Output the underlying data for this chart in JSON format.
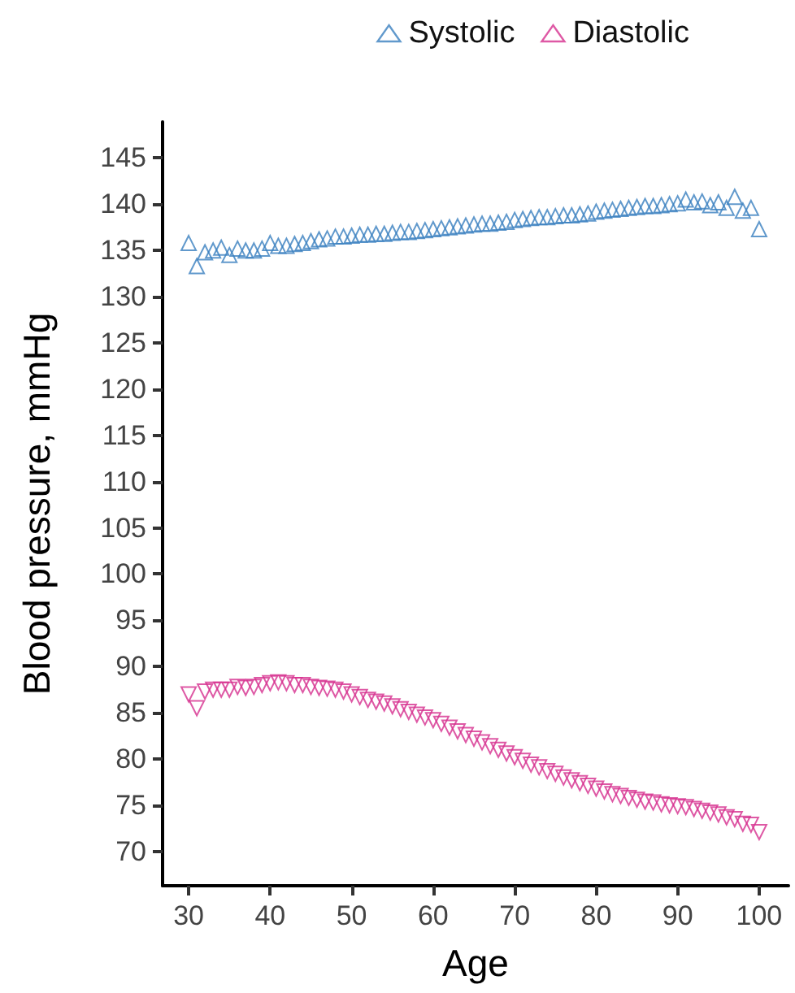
{
  "chart_data": {
    "type": "scatter",
    "xlabel": "Age",
    "ylabel": "Blood pressure, mmHg",
    "x": [
      30,
      31,
      32,
      33,
      34,
      35,
      36,
      37,
      38,
      39,
      40,
      41,
      42,
      43,
      44,
      45,
      46,
      47,
      48,
      49,
      50,
      51,
      52,
      53,
      54,
      55,
      56,
      57,
      58,
      59,
      60,
      61,
      62,
      63,
      64,
      65,
      66,
      67,
      68,
      69,
      70,
      71,
      72,
      73,
      74,
      75,
      76,
      77,
      78,
      79,
      80,
      81,
      82,
      83,
      84,
      85,
      86,
      87,
      88,
      89,
      90,
      91,
      92,
      93,
      94,
      95,
      96,
      97,
      98,
      99,
      100
    ],
    "series": [
      {
        "name": "Systolic",
        "color": "#3a7fbf",
        "marker": "triangle",
        "values": [
          135.8,
          133.3,
          134.8,
          135.0,
          135.3,
          134.5,
          135.2,
          135.0,
          135.0,
          135.2,
          135.8,
          135.5,
          135.5,
          135.7,
          135.8,
          136.0,
          136.2,
          136.3,
          136.5,
          136.5,
          136.6,
          136.7,
          136.7,
          136.8,
          136.8,
          136.9,
          137.0,
          137.0,
          137.1,
          137.2,
          137.3,
          137.4,
          137.5,
          137.6,
          137.7,
          137.8,
          137.9,
          137.9,
          138.0,
          138.1,
          138.3,
          138.4,
          138.5,
          138.6,
          138.6,
          138.7,
          138.8,
          138.8,
          138.9,
          139.0,
          139.2,
          139.3,
          139.4,
          139.5,
          139.6,
          139.7,
          139.8,
          139.8,
          139.9,
          140.0,
          140.1,
          140.5,
          140.2,
          140.3,
          139.9,
          140.2,
          139.6,
          140.8,
          139.3,
          139.6,
          137.3
        ]
      },
      {
        "name": "Diastolic",
        "color": "#d6308f",
        "marker": "triangle-down",
        "values": [
          87.0,
          85.5,
          87.3,
          87.5,
          87.5,
          87.5,
          87.8,
          87.7,
          87.8,
          88.0,
          88.2,
          88.3,
          88.2,
          88.0,
          88.0,
          87.8,
          87.7,
          87.6,
          87.5,
          87.3,
          87.0,
          86.7,
          86.4,
          86.2,
          86.0,
          85.7,
          85.4,
          85.1,
          84.8,
          84.5,
          84.2,
          83.8,
          83.4,
          83.0,
          82.6,
          82.2,
          81.8,
          81.4,
          81.0,
          80.6,
          80.2,
          79.8,
          79.4,
          79.1,
          78.7,
          78.4,
          78.0,
          77.7,
          77.4,
          77.1,
          76.8,
          76.5,
          76.2,
          76.0,
          75.8,
          75.6,
          75.4,
          75.3,
          75.1,
          75.0,
          74.9,
          74.8,
          74.6,
          74.4,
          74.2,
          74.0,
          73.7,
          73.5,
          73.0,
          72.9,
          72.1
        ]
      }
    ],
    "xlim": [
      26.8,
      103.6
    ],
    "xticks": [
      30,
      40,
      50,
      60,
      70,
      80,
      90,
      100
    ],
    "ylim": [
      66.3,
      148.9
    ],
    "yticks": [
      70,
      75,
      80,
      85,
      90,
      95,
      100,
      105,
      110,
      115,
      120,
      125,
      130,
      135,
      140,
      145
    ],
    "grid": false,
    "legend": "top right"
  }
}
